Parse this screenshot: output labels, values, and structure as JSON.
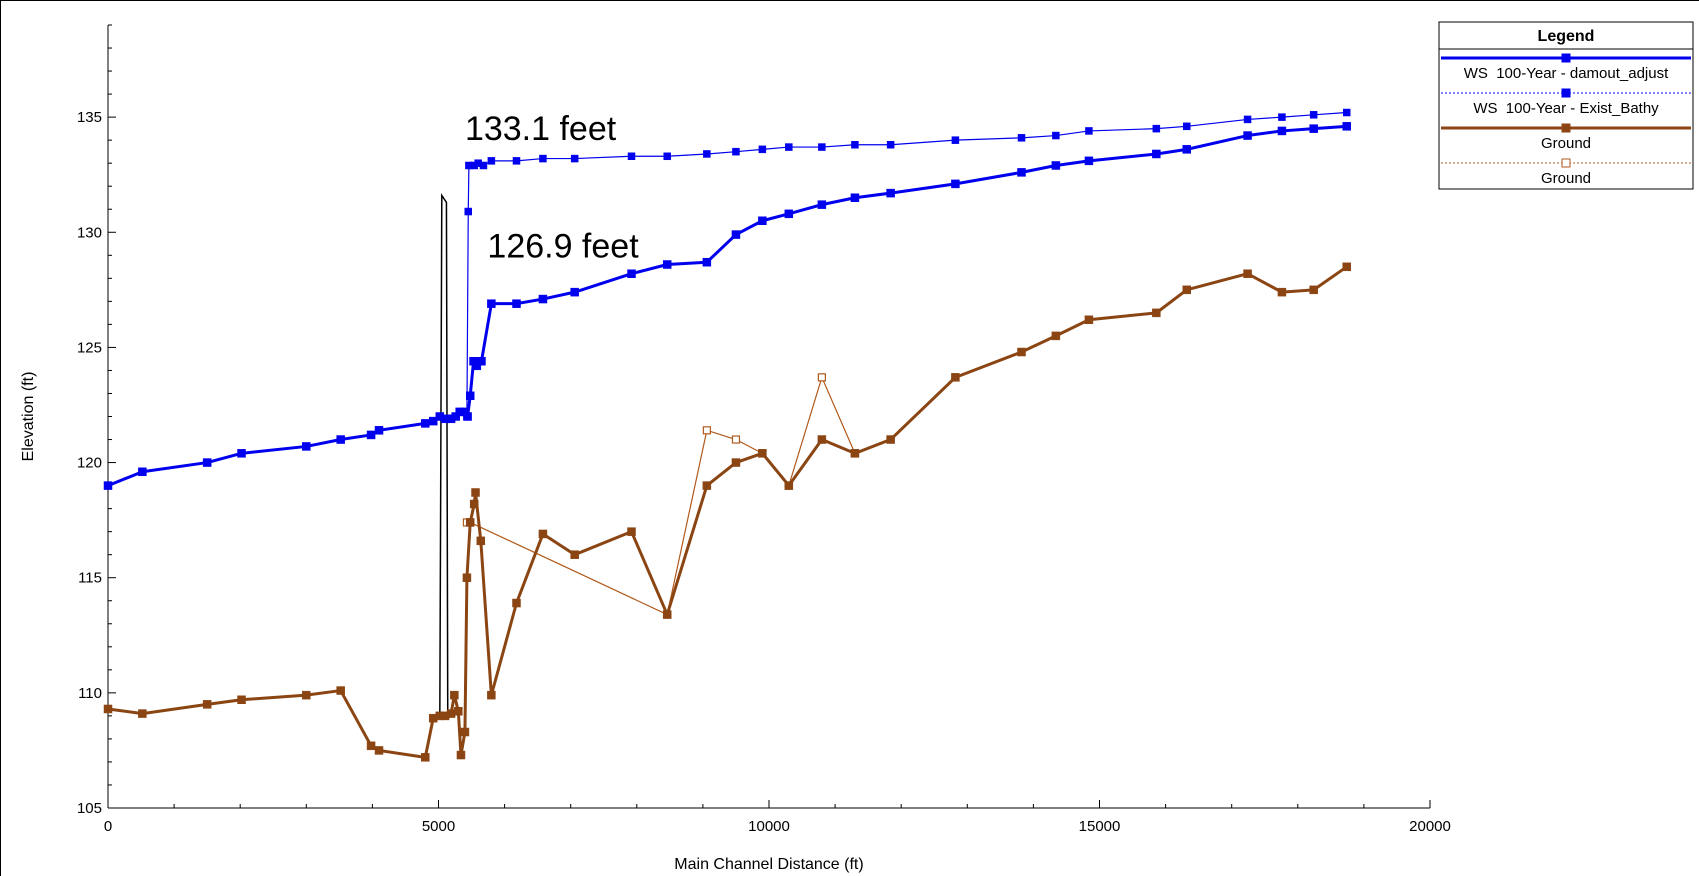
{
  "chart_data": {
    "type": "line",
    "xlabel": "Main Channel Distance (ft)",
    "ylabel": "Elevation (ft)",
    "xlim": [
      0,
      20000
    ],
    "ylim": [
      105,
      139
    ],
    "x_ticks": [
      "0",
      "5000",
      "10000",
      "15000",
      "20000"
    ],
    "y_ticks": [
      "105",
      "110",
      "115",
      "120",
      "125",
      "130",
      "135"
    ],
    "legend_title": "Legend",
    "legend_position": "top-right",
    "grid": false,
    "series": [
      {
        "name": "WS  100-Year - damout_adjust",
        "color": "#0000ee",
        "style": "thick",
        "marker": "filled-square",
        "points": [
          [
            0,
            119.0
          ],
          [
            520,
            119.6
          ],
          [
            1500,
            120.0
          ],
          [
            2020,
            120.4
          ],
          [
            3000,
            120.7
          ],
          [
            3520,
            121.0
          ],
          [
            3980,
            121.2
          ],
          [
            4100,
            121.4
          ],
          [
            4800,
            121.7
          ],
          [
            4920,
            121.8
          ],
          [
            5020,
            122.0
          ],
          [
            5100,
            121.9
          ],
          [
            5190,
            121.9
          ],
          [
            5260,
            122.0
          ],
          [
            5320,
            122.2
          ],
          [
            5400,
            122.2
          ],
          [
            5440,
            122.0
          ],
          [
            5480,
            122.9
          ],
          [
            5530,
            124.4
          ],
          [
            5580,
            124.2
          ],
          [
            5650,
            124.4
          ],
          [
            5800,
            126.9
          ],
          [
            6180,
            126.9
          ],
          [
            6580,
            127.1
          ],
          [
            7060,
            127.4
          ],
          [
            7920,
            128.2
          ],
          [
            8460,
            128.6
          ],
          [
            9060,
            128.7
          ],
          [
            9500,
            129.9
          ],
          [
            9900,
            130.5
          ],
          [
            10300,
            130.8
          ],
          [
            10800,
            131.2
          ],
          [
            11300,
            131.5
          ],
          [
            11840,
            131.7
          ],
          [
            12820,
            132.1
          ],
          [
            13820,
            132.6
          ],
          [
            14340,
            132.9
          ],
          [
            14840,
            133.1
          ],
          [
            15860,
            133.4
          ],
          [
            16320,
            133.6
          ],
          [
            17240,
            134.2
          ],
          [
            17760,
            134.4
          ],
          [
            18240,
            134.5
          ],
          [
            18740,
            134.6
          ]
        ]
      },
      {
        "name": "WS  100-Year - Exist_Bathy",
        "color": "#0000ee",
        "style": "thin",
        "marker": "filled-square",
        "points": [
          [
            5430,
            122.0
          ],
          [
            5450,
            130.9
          ],
          [
            5460,
            132.9
          ],
          [
            5540,
            132.9
          ],
          [
            5600,
            133.0
          ],
          [
            5680,
            132.9
          ],
          [
            5800,
            133.1
          ],
          [
            6180,
            133.1
          ],
          [
            6580,
            133.2
          ],
          [
            7060,
            133.2
          ],
          [
            7920,
            133.3
          ],
          [
            8460,
            133.3
          ],
          [
            9060,
            133.4
          ],
          [
            9500,
            133.5
          ],
          [
            9900,
            133.6
          ],
          [
            10300,
            133.7
          ],
          [
            10800,
            133.7
          ],
          [
            11300,
            133.8
          ],
          [
            11840,
            133.8
          ],
          [
            12820,
            134.0
          ],
          [
            13820,
            134.1
          ],
          [
            14340,
            134.2
          ],
          [
            14840,
            134.4
          ],
          [
            15860,
            134.5
          ],
          [
            16320,
            134.6
          ],
          [
            17240,
            134.9
          ],
          [
            17760,
            135.0
          ],
          [
            18240,
            135.1
          ],
          [
            18740,
            135.2
          ]
        ]
      },
      {
        "name": "Ground",
        "color": "#8b4513",
        "style": "thick",
        "marker": "filled-square",
        "points": [
          [
            0,
            109.3
          ],
          [
            520,
            109.1
          ],
          [
            1500,
            109.5
          ],
          [
            2020,
            109.7
          ],
          [
            3000,
            109.9
          ],
          [
            3520,
            110.1
          ],
          [
            3980,
            107.7
          ],
          [
            4100,
            107.5
          ],
          [
            4800,
            107.2
          ],
          [
            4920,
            108.9
          ],
          [
            5020,
            109.0
          ],
          [
            5100,
            109.0
          ],
          [
            5190,
            109.1
          ],
          [
            5240,
            109.9
          ],
          [
            5300,
            109.2
          ],
          [
            5340,
            107.3
          ],
          [
            5400,
            108.3
          ],
          [
            5430,
            115.0
          ],
          [
            5480,
            117.4
          ],
          [
            5540,
            118.2
          ],
          [
            5560,
            118.7
          ],
          [
            5640,
            116.6
          ],
          [
            5800,
            109.9
          ],
          [
            6180,
            113.9
          ],
          [
            6580,
            116.9
          ],
          [
            7060,
            116.0
          ],
          [
            7920,
            117.0
          ],
          [
            8460,
            113.4
          ],
          [
            9060,
            119.0
          ],
          [
            9500,
            120.0
          ],
          [
            9900,
            120.4
          ],
          [
            10300,
            119.0
          ],
          [
            10800,
            121.0
          ],
          [
            11300,
            120.4
          ],
          [
            11840,
            121.0
          ],
          [
            12820,
            123.7
          ],
          [
            13820,
            124.8
          ],
          [
            14340,
            125.5
          ],
          [
            14840,
            126.2
          ],
          [
            15860,
            126.5
          ],
          [
            16320,
            127.5
          ],
          [
            17240,
            128.2
          ],
          [
            17760,
            127.4
          ],
          [
            18240,
            127.5
          ],
          [
            18740,
            128.5
          ]
        ]
      },
      {
        "name": "Ground",
        "color": "#b05a1c",
        "style": "thin",
        "marker": "open-square",
        "points": [
          [
            5430,
            117.4
          ],
          [
            5480,
            117.4
          ],
          [
            8460,
            113.4
          ],
          [
            9060,
            121.4
          ],
          [
            9500,
            121.0
          ],
          [
            9900,
            120.4
          ],
          [
            10300,
            119.0
          ],
          [
            10800,
            123.7
          ],
          [
            11300,
            120.4
          ]
        ]
      }
    ],
    "structure_outline": [
      [
        5020,
        109.0
      ],
      [
        5050,
        131.6
      ],
      [
        5120,
        131.3
      ],
      [
        5140,
        109.0
      ]
    ],
    "annotations": [
      {
        "text": "133.1 feet",
        "x": 5400,
        "y": 134.0
      },
      {
        "text": "126.9 feet",
        "x": 5740,
        "y": 128.9
      }
    ]
  }
}
